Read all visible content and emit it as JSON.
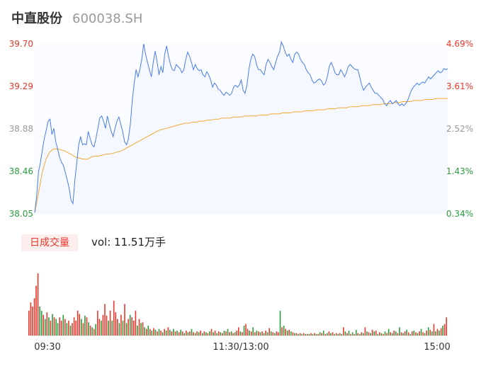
{
  "header": {
    "name": "中直股份",
    "code": "600038.SH"
  },
  "volume_panel": {
    "badge_label": "日成交量",
    "vol_text": "vol: 11.51万手"
  },
  "colors": {
    "price": "#4a7de8",
    "avg": "#f0a830",
    "up": "#e8382b",
    "down": "#2a9d3f",
    "flat": "#999999",
    "fill": "#f5f8ff"
  },
  "chart_data": [
    {
      "type": "line",
      "title": "",
      "ylim": [
        38.05,
        39.7
      ],
      "y_ticks_left": [
        "39.70",
        "39.29",
        "38.88",
        "38.46",
        "38.05"
      ],
      "y_ticks_right": [
        "4.69%",
        "3.61%",
        "2.52%",
        "1.43%",
        "0.34%"
      ],
      "x_ticks": [
        "09:30",
        "11:30/13:00",
        "15:00"
      ],
      "series": [
        {
          "values": [
            38.06,
            38.22,
            38.46,
            38.55,
            38.67,
            38.78,
            38.86,
            38.95,
            38.97,
            38.82,
            38.88,
            38.75,
            38.68,
            38.6,
            38.55,
            38.52,
            38.45,
            38.38,
            38.3,
            38.18,
            38.15,
            38.38,
            38.55,
            38.72,
            38.8,
            38.72,
            38.73,
            38.72,
            38.85,
            38.78,
            38.72,
            38.7,
            38.78,
            38.88,
            38.98,
            39.0,
            38.95,
            38.88,
            39.0,
            38.92,
            38.85,
            38.8,
            38.88,
            38.95,
            38.99,
            38.92,
            38.85,
            38.75,
            38.72,
            38.78,
            38.92,
            39.15,
            39.32,
            39.45,
            39.38,
            39.45,
            39.55,
            39.7,
            39.6,
            39.52,
            39.45,
            39.38,
            39.52,
            39.63,
            39.53,
            39.4,
            39.48,
            39.42,
            39.6,
            39.68,
            39.58,
            39.5,
            39.45,
            39.44,
            39.5,
            39.48,
            39.46,
            39.42,
            39.45,
            39.55,
            39.62,
            39.58,
            39.52,
            39.45,
            39.5,
            39.46,
            39.44,
            39.45,
            39.4,
            39.38,
            39.43,
            39.4,
            39.35,
            39.28,
            39.32,
            39.3,
            39.26,
            39.25,
            39.22,
            39.2,
            39.23,
            39.22,
            39.2,
            39.22,
            39.28,
            39.3,
            39.28,
            39.3,
            39.35,
            39.25,
            39.22,
            39.3,
            39.45,
            39.55,
            39.6,
            39.58,
            39.5,
            39.45,
            39.45,
            39.42,
            39.4,
            39.5,
            39.55,
            39.52,
            39.48,
            39.45,
            39.52,
            39.58,
            39.62,
            39.72,
            39.68,
            39.62,
            39.58,
            39.6,
            39.55,
            39.52,
            39.6,
            39.62,
            39.6,
            39.55,
            39.52,
            39.5,
            39.45,
            39.42,
            39.4,
            39.35,
            39.32,
            39.33,
            39.35,
            39.36,
            39.34,
            39.3,
            39.32,
            39.38,
            39.48,
            39.52,
            39.48,
            39.42,
            39.4,
            39.4,
            39.45,
            39.42,
            39.38,
            39.42,
            39.48,
            39.5,
            39.48,
            39.46,
            39.45,
            39.45,
            39.38,
            39.3,
            39.25,
            39.28,
            39.3,
            39.32,
            39.28,
            39.25,
            39.22,
            39.22,
            39.2,
            39.18,
            39.16,
            39.12,
            39.1,
            39.13,
            39.15,
            39.12,
            39.13,
            39.15,
            39.12,
            39.1,
            39.12,
            39.1,
            39.12,
            39.15,
            39.2,
            39.25,
            39.28,
            39.3,
            39.32,
            39.3,
            39.32,
            39.33,
            39.32,
            39.35,
            39.38,
            39.36,
            39.38,
            39.4,
            39.42,
            39.44,
            39.42,
            39.43,
            39.46,
            39.45,
            39.46
          ]
        },
        {
          "values": [
            38.06,
            38.25,
            38.45,
            38.58,
            38.65,
            38.68,
            38.68,
            38.67,
            38.66,
            38.64,
            38.62,
            38.6,
            38.59,
            38.58,
            38.58,
            38.6,
            38.61,
            38.61,
            38.62,
            38.63,
            38.63,
            38.64,
            38.65,
            38.66,
            38.68,
            38.7,
            38.72,
            38.74,
            38.76,
            38.78,
            38.8,
            38.82,
            38.84,
            38.86,
            38.87,
            38.88,
            38.89,
            38.9,
            38.91,
            38.92,
            38.93,
            38.93,
            38.94,
            38.94,
            38.95,
            38.95,
            38.96,
            38.96,
            38.97,
            38.97,
            38.98,
            38.98,
            38.98,
            38.99,
            38.99,
            38.99,
            39.0,
            39.0,
            39.0,
            39.0,
            39.01,
            39.01,
            39.01,
            39.02,
            39.02,
            39.02,
            39.03,
            39.03,
            39.03,
            39.04,
            39.04,
            39.04,
            39.05,
            39.05,
            39.05,
            39.06,
            39.06,
            39.06,
            39.07,
            39.07,
            39.07,
            39.08,
            39.08,
            39.08,
            39.09,
            39.09,
            39.09,
            39.1,
            39.1,
            39.1,
            39.11,
            39.11,
            39.11,
            39.12,
            39.12,
            39.12,
            39.13,
            39.13,
            39.14,
            39.14,
            39.14,
            39.15,
            39.15,
            39.15,
            39.16,
            39.16,
            39.16,
            39.17,
            39.17,
            39.17,
            39.17
          ]
        }
      ]
    },
    {
      "type": "bar",
      "title": "",
      "values": [
        30,
        40,
        35,
        45,
        60,
        75,
        35,
        30,
        25,
        20,
        28,
        22,
        18,
        26,
        22,
        20,
        15,
        22,
        18,
        25,
        20,
        15,
        18,
        12,
        15,
        22,
        18,
        30,
        26,
        20,
        15,
        24,
        22,
        16,
        12,
        10,
        8,
        14,
        30,
        20,
        18,
        25,
        38,
        24,
        18,
        30,
        18,
        42,
        28,
        20,
        15,
        25,
        18,
        38,
        15,
        20,
        25,
        22,
        18,
        30,
        12,
        20,
        15,
        16,
        10,
        8,
        12,
        8,
        6,
        9,
        7,
        5,
        8,
        6,
        4,
        8,
        6,
        10,
        7,
        5,
        8,
        5,
        6,
        4,
        7,
        5,
        3,
        6,
        4,
        5,
        8,
        4,
        3,
        5,
        4,
        6,
        3,
        5,
        4,
        3,
        5,
        8,
        4,
        6,
        3,
        5,
        4,
        3,
        6,
        5,
        8,
        4,
        5,
        3,
        4,
        6,
        10,
        5,
        4,
        12,
        14,
        8,
        6,
        5,
        10,
        4,
        6,
        5,
        4,
        5,
        3,
        6,
        4,
        9,
        5,
        4,
        3,
        5,
        4,
        30,
        10,
        12,
        8,
        6,
        7,
        5,
        4,
        3,
        3,
        2,
        3,
        2,
        3,
        2,
        2,
        2,
        3,
        2,
        3,
        2,
        2,
        4,
        3,
        6,
        2,
        3,
        5,
        3,
        4,
        2,
        3,
        2,
        3,
        2,
        10,
        5,
        3,
        6,
        2,
        4,
        2,
        7,
        3,
        2,
        4,
        3,
        10,
        5,
        4,
        3,
        7,
        5,
        6,
        2,
        4,
        3,
        2,
        5,
        3,
        8,
        4,
        3,
        6,
        5,
        3,
        10,
        4,
        3,
        5,
        7,
        4,
        2,
        5,
        6,
        4,
        3,
        5,
        8,
        4,
        3,
        6,
        10,
        7,
        5,
        14,
        5,
        8,
        6,
        9,
        12,
        14,
        22
      ],
      "colors": [
        "up",
        "up",
        "up",
        "up",
        "up",
        "up",
        "down",
        "down",
        "up",
        "down",
        "up",
        "down",
        "up",
        "down",
        "up",
        "down",
        "down",
        "up",
        "up",
        "down",
        "up",
        "down",
        "up",
        "down",
        "up",
        "up",
        "up",
        "up",
        "up",
        "down",
        "up",
        "down",
        "up",
        "down",
        "up",
        "down",
        "up",
        "down",
        "up",
        "up",
        "down",
        "up",
        "up",
        "up",
        "down",
        "up",
        "down",
        "up",
        "up",
        "up",
        "down",
        "up",
        "down",
        "up",
        "down",
        "up",
        "down",
        "up",
        "up",
        "up",
        "down",
        "up",
        "down",
        "up",
        "down",
        "up",
        "down",
        "up",
        "down",
        "up",
        "down",
        "up",
        "down",
        "up",
        "down",
        "up",
        "down",
        "up",
        "down",
        "up",
        "down",
        "up",
        "down",
        "up",
        "down",
        "up",
        "down",
        "up",
        "down",
        "up",
        "down",
        "up",
        "down",
        "up",
        "down",
        "up",
        "down",
        "up",
        "down",
        "up",
        "down",
        "up",
        "down",
        "up",
        "down",
        "up",
        "down",
        "up",
        "down",
        "up",
        "down",
        "up",
        "down",
        "up",
        "down",
        "up",
        "up",
        "down",
        "up",
        "down",
        "up",
        "up",
        "down",
        "up",
        "down",
        "up",
        "down",
        "up",
        "down",
        "up",
        "down",
        "up",
        "down",
        "up",
        "down",
        "up",
        "down",
        "up",
        "up",
        "down",
        "up",
        "down",
        "up",
        "down",
        "up",
        "down",
        "up",
        "down",
        "up",
        "down",
        "up",
        "down",
        "up",
        "down",
        "up",
        "down",
        "up",
        "down",
        "up",
        "down",
        "up",
        "down",
        "up",
        "down",
        "up",
        "down",
        "up",
        "down",
        "up",
        "down",
        "up",
        "down",
        "up",
        "down",
        "up",
        "down",
        "up",
        "down",
        "up",
        "down",
        "up",
        "down",
        "up",
        "down",
        "up",
        "down",
        "up",
        "down",
        "up",
        "down",
        "up",
        "down",
        "up",
        "down",
        "up",
        "down",
        "up",
        "down",
        "up",
        "down",
        "up",
        "down",
        "up",
        "down",
        "up",
        "down",
        "up",
        "down",
        "up",
        "down",
        "up",
        "down",
        "up",
        "down",
        "up",
        "down",
        "up",
        "down",
        "up",
        "down",
        "up",
        "down",
        "up",
        "down",
        "up",
        "down",
        "up",
        "down",
        "up",
        "down",
        "up",
        "up",
        "down",
        "up",
        "up",
        "down",
        "up",
        "flat"
      ]
    }
  ]
}
